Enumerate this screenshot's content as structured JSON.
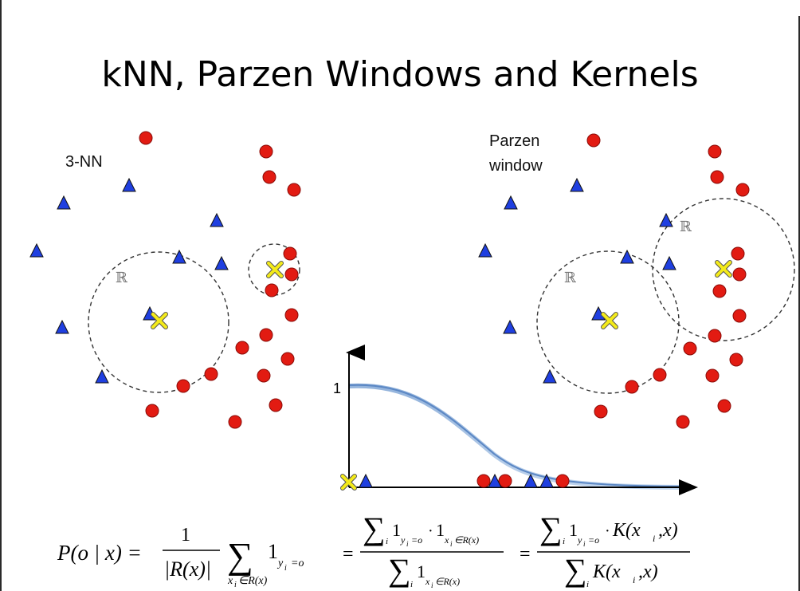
{
  "title": "kNN, Parzen Windows and Kernels",
  "left_panel": {
    "label": "3-NN",
    "region_label": "ℝ"
  },
  "right_panel": {
    "label_line1": "Parzen",
    "label_line2": "window",
    "region_label": "ℝ"
  },
  "kernel_plot": {
    "y_tick": "1"
  },
  "formula": {
    "lhs": "P(o | x) =",
    "frac1_num": "1",
    "frac1_den": "|R(x)|",
    "sum_sym": "∑",
    "indicator": "1",
    "indicator_sub": "y",
    "indicator_sub_i": "i",
    "indicator_sub_eq": "=o",
    "sum_under": "x",
    "sum_under_i": "i",
    "sum_under_rest": "∈R(x)",
    "eq2": "=",
    "eq3": "=",
    "frac2_num_index": "i",
    "frac2_num_dot": "·",
    "frac2_num_ind2_sub": "∈R(x)",
    "frac3_num_k": "K(x",
    "frac3_num_k_i": "i",
    "frac3_num_k_rest": ",x)",
    "frac3_den": "K(x",
    "frac3_den_rest": ",x)"
  },
  "colors": {
    "triangle": "#1f3fe0",
    "circle": "#e21b12",
    "query": "#f3ea1a"
  }
}
